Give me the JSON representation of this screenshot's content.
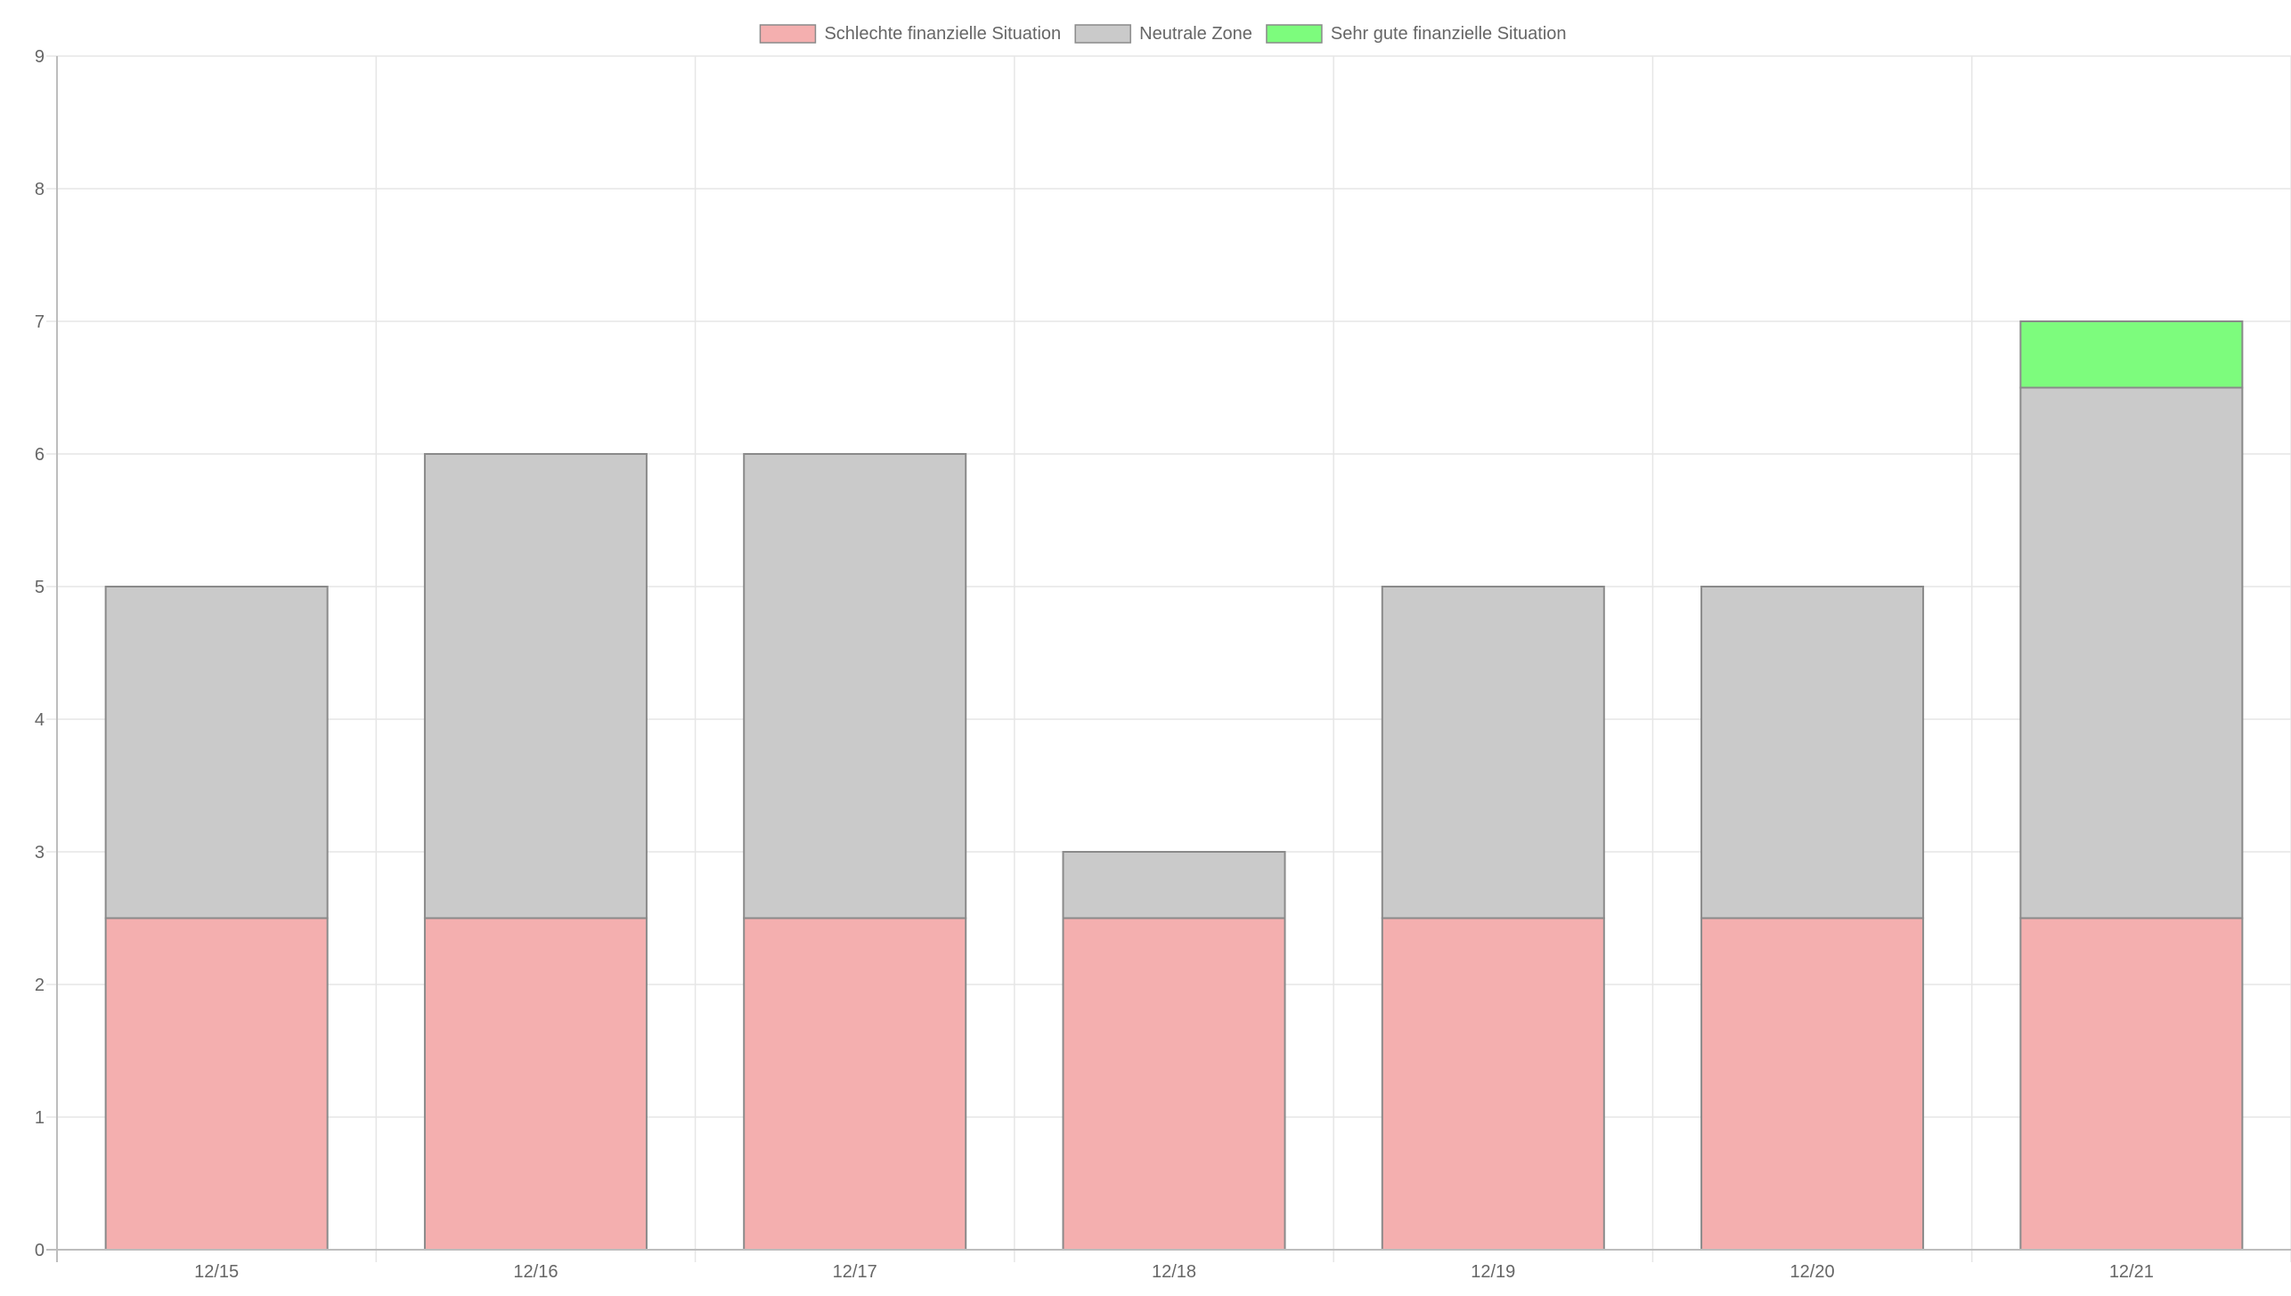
{
  "chart_data": {
    "type": "bar",
    "stacked": true,
    "categories": [
      "12/15",
      "12/16",
      "12/17",
      "12/18",
      "12/19",
      "12/20",
      "12/21"
    ],
    "series": [
      {
        "name": "Schlechte finanzielle Situation",
        "color": "#f4afaf",
        "values": [
          2.5,
          2.5,
          2.5,
          2.5,
          2.5,
          2.5,
          2.5
        ]
      },
      {
        "name": "Neutrale Zone",
        "color": "#cacaca",
        "values": [
          2.5,
          3.5,
          3.5,
          0.5,
          2.5,
          2.5,
          4
        ]
      },
      {
        "name": "Sehr gute finanzielle Situation",
        "color": "#7dfc7d",
        "values": [
          0,
          0,
          0,
          0,
          0,
          0,
          0.5
        ]
      }
    ],
    "ylim": [
      0,
      9
    ],
    "yticks": [
      0,
      1,
      2,
      3,
      4,
      5,
      6,
      7,
      8,
      9
    ],
    "grid": true,
    "legend_position": "top",
    "title": "",
    "xlabel": "",
    "ylabel": ""
  }
}
